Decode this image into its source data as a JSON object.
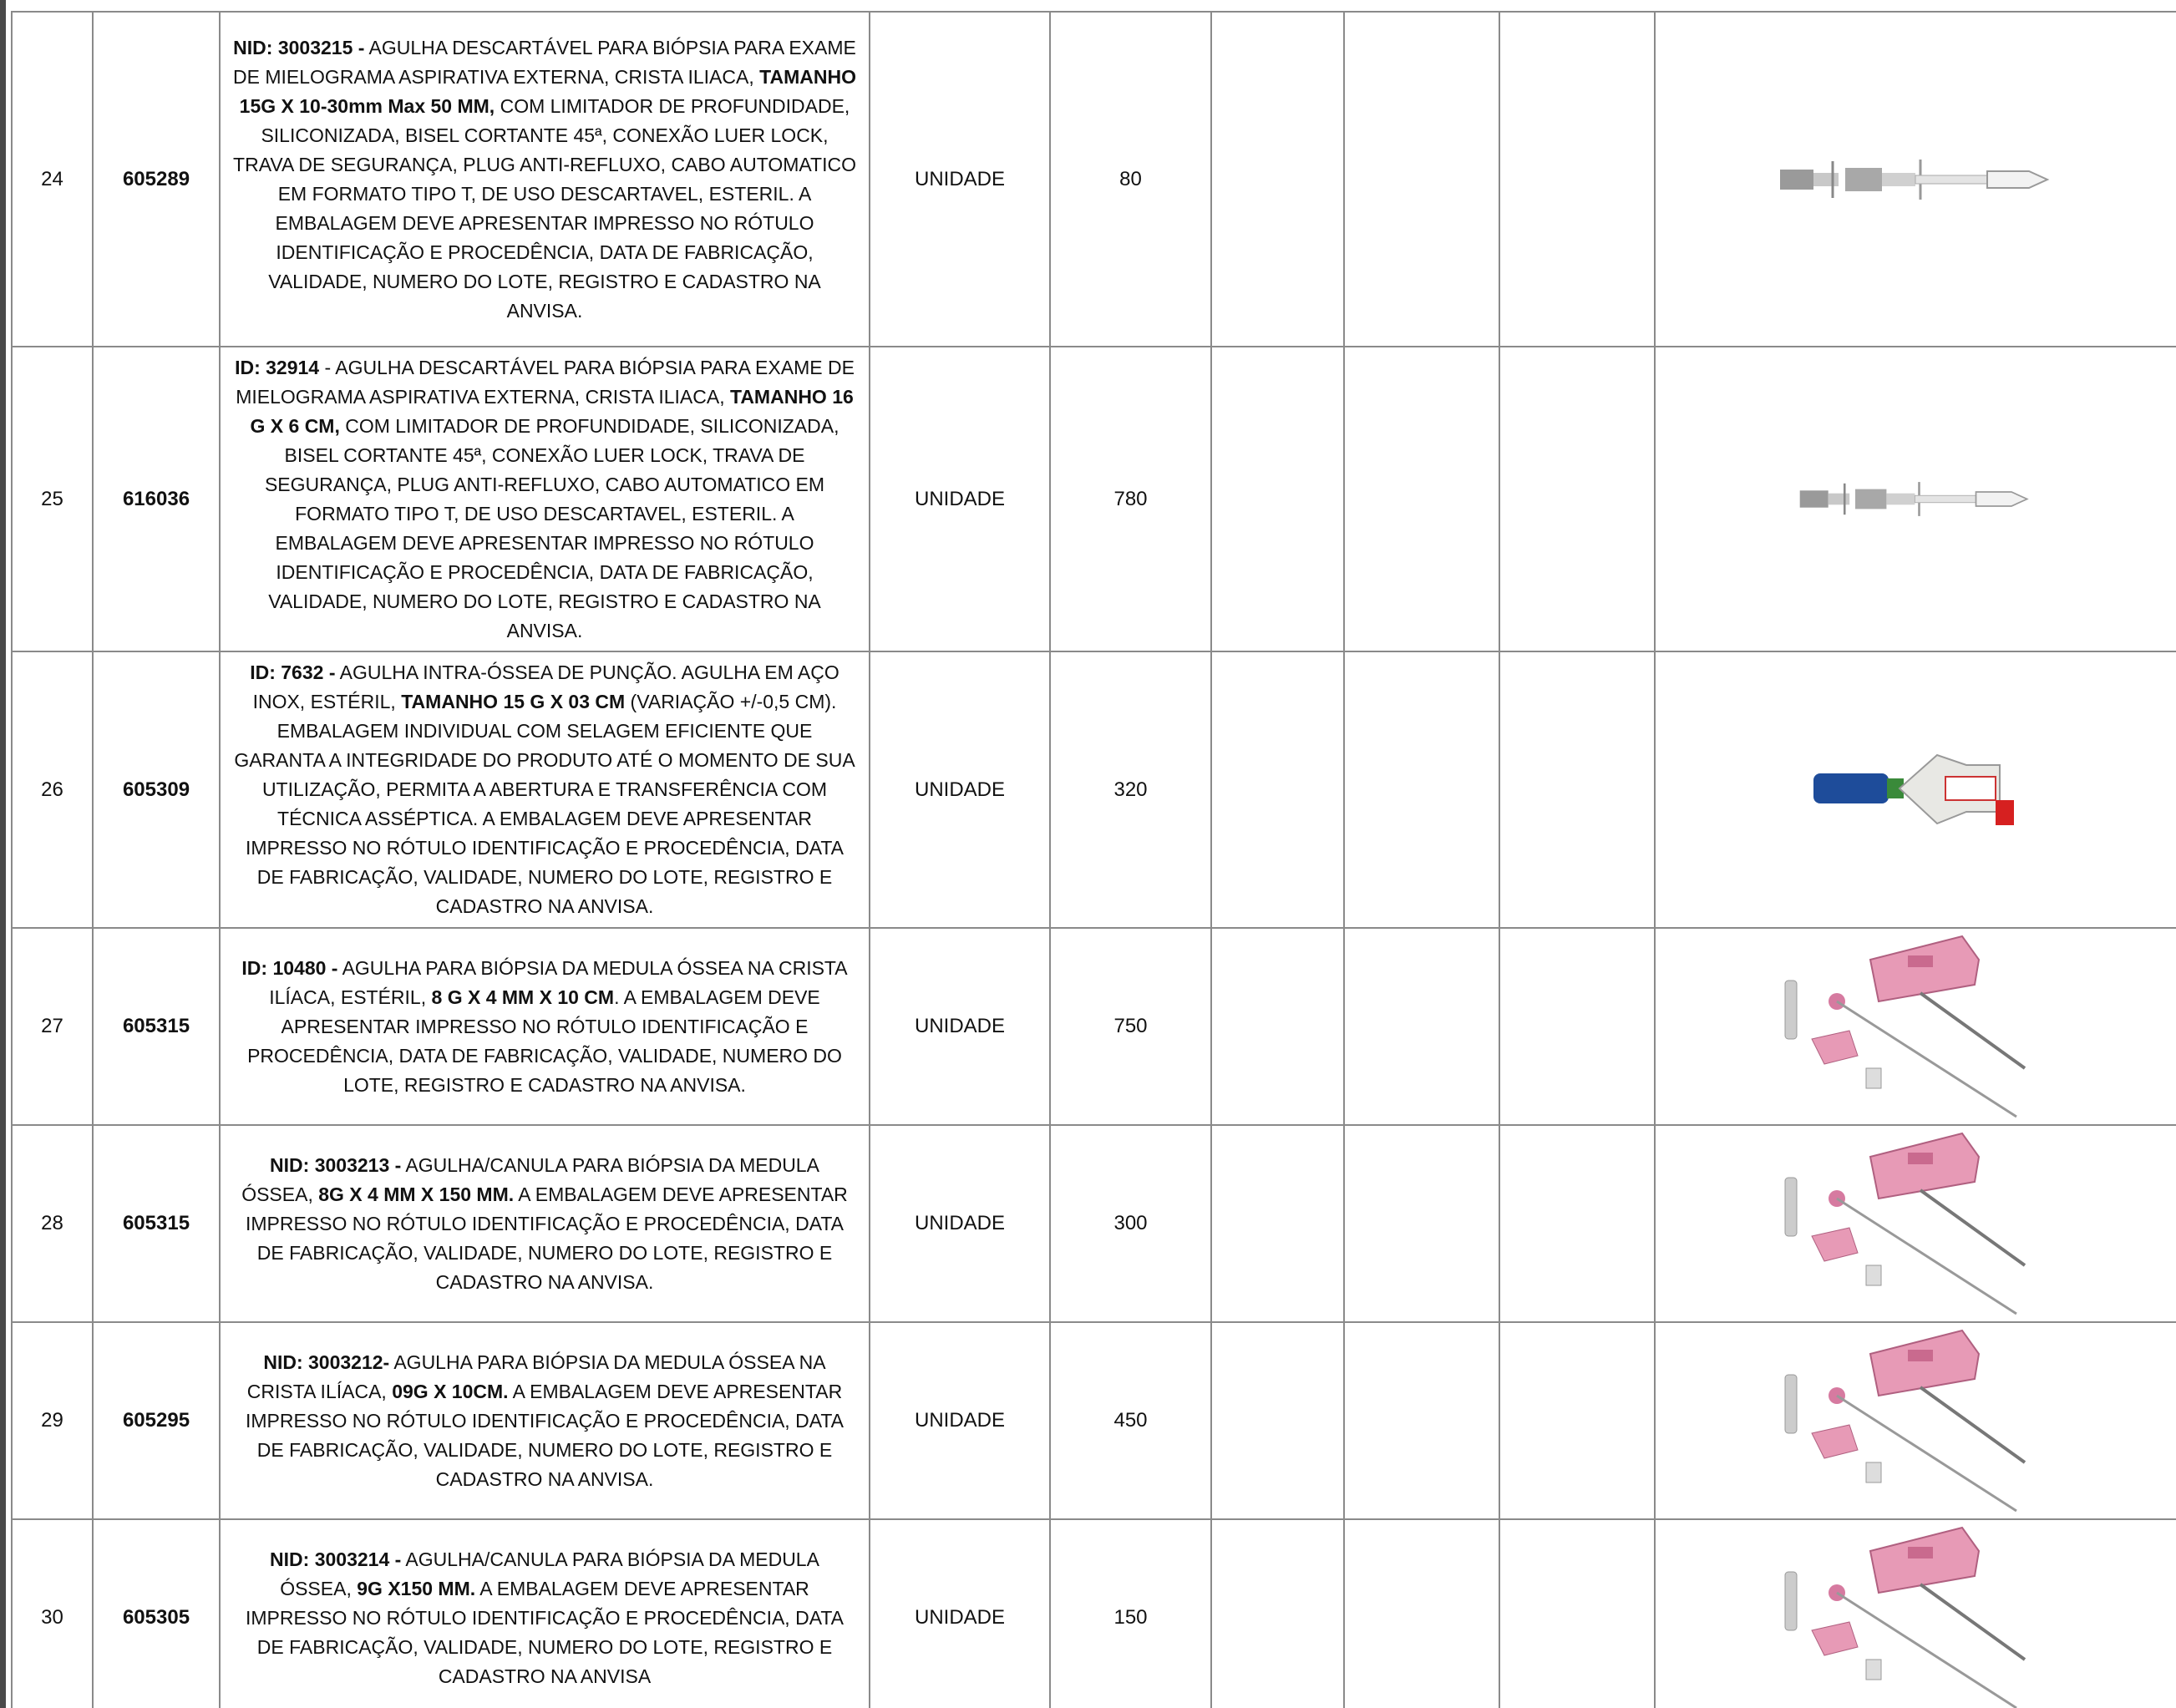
{
  "table": {
    "rows": [
      {
        "item": "24",
        "code": "605289",
        "description": [
          {
            "bold": "NID: 3003215 -"
          },
          {
            "text": " AGULHA DESCARTÁVEL PARA BIÓPSIA PARA EXAME DE MIELOGRAMA ASPIRATIVA EXTERNA, CRISTA ILIACA, "
          },
          {
            "bold": "TAMANHO 15G X 10-30mm Max 50 MM,"
          },
          {
            "text": " COM LIMITADOR DE PROFUNDIDADE, SILICONIZADA, BISEL CORTANTE 45ª, CONEXÃO LUER LOCK, TRAVA DE SEGURANÇA, PLUG ANTI-REFLUXO, CABO AUTOMATICO EM FORMATO TIPO T, DE USO DESCARTAVEL, ESTERIL. A EMBALAGEM DEVE APRESENTAR IMPRESSO NO RÓTULO IDENTIFICAÇÃO E PROCEDÊNCIA, DATA DE FABRICAÇÃO, VALIDADE, NUMERO DO LOTE, REGISTRO E CADASTRO NA ANVISA."
          }
        ],
        "unit": "UNIDADE",
        "quantity": 80
      },
      {
        "item": "25",
        "code": "616036",
        "description": [
          {
            "bold": "ID: 32914"
          },
          {
            "text": " - AGULHA DESCARTÁVEL PARA BIÓPSIA PARA EXAME DE MIELOGRAMA ASPIRATIVA EXTERNA, CRISTA ILIACA, "
          },
          {
            "bold": "TAMANHO 16 G X 6 CM,"
          },
          {
            "text": " COM LIMITADOR DE PROFUNDIDADE, SILICONIZADA, BISEL CORTANTE 45ª, CONEXÃO LUER LOCK, TRAVA DE SEGURANÇA, PLUG ANTI-REFLUXO, CABO AUTOMATICO EM FORMATO TIPO T, DE USO DESCARTAVEL, ESTERIL. A EMBALAGEM DEVE APRESENTAR IMPRESSO NO RÓTULO IDENTIFICAÇÃO E PROCEDÊNCIA, DATA DE FABRICAÇÃO, VALIDADE, NUMERO DO LOTE, REGISTRO E CADASTRO NA ANVISA."
          }
        ],
        "unit": "UNIDADE",
        "quantity": 780
      },
      {
        "item": "26",
        "code": "605309",
        "description": [
          {
            "bold": "ID: 7632 -"
          },
          {
            "text": " AGULHA INTRA-ÓSSEA DE PUNÇÃO. AGULHA EM AÇO INOX, ESTÉRIL, "
          },
          {
            "bold": "TAMANHO 15 G X 03 CM"
          },
          {
            "text": " (VARIAÇÃO +/-0,5 CM). EMBALAGEM INDIVIDUAL COM SELAGEM EFICIENTE QUE GARANTA A INTEGRIDADE DO PRODUTO ATÉ O MOMENTO DE SUA UTILIZAÇÃO, PERMITA A ABERTURA E TRANSFERÊNCIA COM TÉCNICA ASSÉPTICA. A EMBALAGEM DEVE APRESENTAR IMPRESSO NO RÓTULO IDENTIFICAÇÃO E PROCEDÊNCIA, DATA DE FABRICAÇÃO, VALIDADE, NUMERO DO LOTE, REGISTRO E CADASTRO NA ANVISA."
          }
        ],
        "unit": "UNIDADE",
        "quantity": 320
      },
      {
        "item": "27",
        "code": "605315",
        "description": [
          {
            "bold": "ID: 10480 -"
          },
          {
            "text": " AGULHA PARA BIÓPSIA DA MEDULA ÓSSEA NA CRISTA ILÍACA, ESTÉRIL, "
          },
          {
            "bold": "8 G X 4 MM X 10 CM"
          },
          {
            "text": ". A EMBALAGEM DEVE APRESENTAR IMPRESSO NO RÓTULO IDENTIFICAÇÃO E PROCEDÊNCIA, DATA DE FABRICAÇÃO, VALIDADE, NUMERO DO LOTE, REGISTRO E CADASTRO NA ANVISA."
          }
        ],
        "unit": "UNIDADE",
        "quantity": 750
      },
      {
        "item": "28",
        "code": "605315",
        "description": [
          {
            "bold": "NID: 3003213 -"
          },
          {
            "text": " AGULHA/CANULA PARA BIÓPSIA DA MEDULA ÓSSEA, "
          },
          {
            "bold": "8G X 4 MM X 150 MM."
          },
          {
            "text": " A EMBALAGEM DEVE APRESENTAR IMPRESSO NO RÓTULO IDENTIFICAÇÃO E PROCEDÊNCIA, DATA DE FABRICAÇÃO, VALIDADE, NUMERO DO LOTE, REGISTRO E CADASTRO NA ANVISA."
          }
        ],
        "unit": "UNIDADE",
        "quantity": 300
      },
      {
        "item": "29",
        "code": "605295",
        "description": [
          {
            "bold": "NID: 3003212-"
          },
          {
            "text": " AGULHA PARA BIÓPSIA DA MEDULA ÓSSEA NA CRISTA ILÍACA, "
          },
          {
            "bold": "09G X 10CM."
          },
          {
            "text": " A EMBALAGEM DEVE APRESENTAR IMPRESSO NO RÓTULO IDENTIFICAÇÃO E PROCEDÊNCIA, DATA DE FABRICAÇÃO, VALIDADE, NUMERO DO LOTE, REGISTRO E CADASTRO NA ANVISA."
          }
        ],
        "unit": "UNIDADE",
        "quantity": 450
      },
      {
        "item": "30",
        "code": "605305",
        "description": [
          {
            "bold": "NID: 3003214 -"
          },
          {
            "text": " AGULHA/CANULA PARA BIÓPSIA DA MEDULA ÓSSEA, "
          },
          {
            "bold": "9G X150 MM."
          },
          {
            "text": " A EMBALAGEM DEVE APRESENTAR IMPRESSO NO RÓTULO IDENTIFICAÇÃO E PROCEDÊNCIA, DATA DE FABRICAÇÃO, VALIDADE, NUMERO DO LOTE, REGISTRO E CADASTRO NA ANVISA"
          }
        ],
        "unit": "UNIDADE",
        "quantity": 150
      }
    ]
  }
}
